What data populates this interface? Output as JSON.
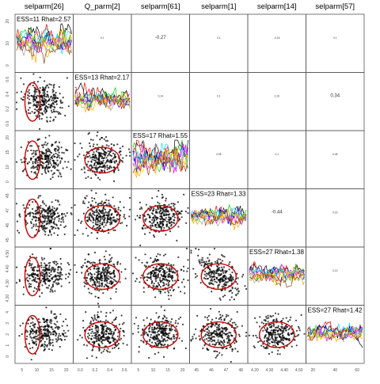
{
  "chart_data": {
    "type": "scatter",
    "parameters": [
      "selparm[26]",
      "Q_parm[2]",
      "selparm[61]",
      "selparm[1]",
      "selparm[14]",
      "selparm[57]"
    ],
    "diagonal_stats": [
      "ESS=11 Rhat=2.57",
      "ESS=13 Rhat=2.17",
      "ESS=17 Rhat=1.55",
      "ESS=23 Rhat=1.33",
      "ESS=27 Rhat=1.38",
      "ESS=27 Rhat=1.42"
    ],
    "correlation_cells": [
      {
        "row": 0,
        "col": 2,
        "text": "-0.27",
        "size": "medium"
      },
      {
        "row": 0,
        "col": 1,
        "text": "0.1",
        "size": "tiny"
      },
      {
        "row": 0,
        "col": 3,
        "text": "0.1",
        "size": "tiny"
      },
      {
        "row": 0,
        "col": 4,
        "text": "-0.16",
        "size": "tiny"
      },
      {
        "row": 0,
        "col": 5,
        "text": "0.1",
        "size": "tiny"
      },
      {
        "row": 1,
        "col": 2,
        "text": "0.14",
        "size": "tiny"
      },
      {
        "row": 1,
        "col": 3,
        "text": "0.1",
        "size": "tiny"
      },
      {
        "row": 1,
        "col": 4,
        "text": "0.16",
        "size": "tiny"
      },
      {
        "row": 1,
        "col": 5,
        "text": "0.34",
        "size": "medium"
      },
      {
        "row": 2,
        "col": 3,
        "text": "0.08",
        "size": "tiny"
      },
      {
        "row": 2,
        "col": 4,
        "text": "0.1",
        "size": "tiny"
      },
      {
        "row": 2,
        "col": 5,
        "text": "0.08",
        "size": "tiny"
      },
      {
        "row": 3,
        "col": 4,
        "text": "-0.44",
        "size": "medium"
      },
      {
        "row": 3,
        "col": 5,
        "text": "0.16",
        "size": "tiny"
      },
      {
        "row": 4,
        "col": 5,
        "text": "0.13",
        "size": "tiny"
      }
    ],
    "axis_ticks": {
      "x": [
        [
          "5",
          "10",
          "15",
          "20"
        ],
        [
          "0.0",
          "0.2",
          "0.4",
          "0.6"
        ],
        [
          "5",
          "10",
          "15",
          "20"
        ],
        [
          "45",
          "46",
          "47",
          "48"
        ],
        [
          "4.20",
          "4.30",
          "4.40",
          "4.50"
        ],
        [
          "20",
          "40",
          "60"
        ]
      ],
      "y": [
        [
          "0",
          "10",
          "20"
        ],
        [
          "0.0",
          "0.2",
          "0.4",
          "0.6"
        ],
        [
          "0",
          "10",
          "15",
          "20"
        ],
        [
          "45",
          "46",
          "47",
          "48"
        ],
        [
          "4.20",
          "4.30",
          "4.40",
          "4.50"
        ],
        [
          "0",
          "1",
          "2",
          "3",
          "4"
        ]
      ]
    },
    "trace_colors": [
      "#000000",
      "#ff0000",
      "#00cd00",
      "#0000ff",
      "#00e5ee",
      "#ff00ff",
      "#e5e500",
      "#a0a0a0",
      "#ffa500",
      "#8b4513"
    ],
    "ellipse_color": "#cc0000",
    "point_color": "#000000",
    "grid": false,
    "legend": "none"
  }
}
